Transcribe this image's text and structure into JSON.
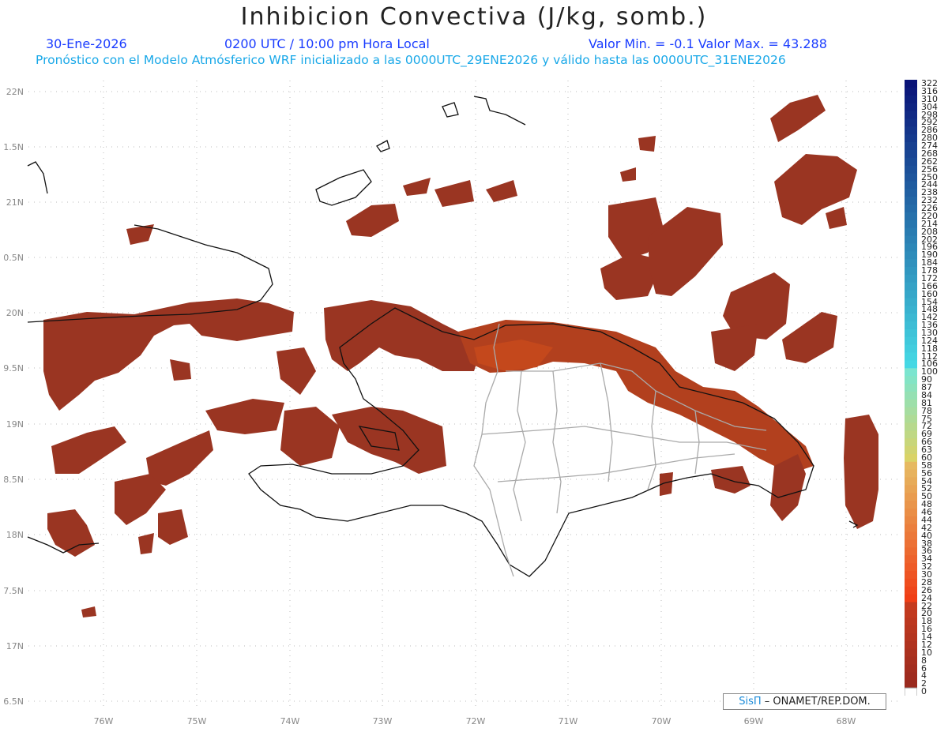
{
  "header": {
    "title": "Inhibicion Convectiva (J/kg, somb.)",
    "date": "30-Ene-2026",
    "time": "0200 UTC / 10:00 pm Hora Local",
    "minmax": "Valor Min. = -0.1  Valor Max. = 43.288",
    "subtitle": "Pronóstico con el Modelo Atmósferico WRF inicializado a las 0000UTC_29ENE2026 y válido hasta las  0000UTC_31ENE2026"
  },
  "axes": {
    "lat_labels": [
      "22N",
      "1.5N",
      "21N",
      "0.5N",
      "20N",
      "9.5N",
      "19N",
      "8.5N",
      "18N",
      "7.5N",
      "17N",
      "6.5N"
    ],
    "lon_labels": [
      "76W",
      "75W",
      "74W",
      "73W",
      "72W",
      "71W",
      "70W",
      "69W",
      "68W"
    ]
  },
  "credit": {
    "sis": "SisΠ",
    "text": "– ONAMET/REP.DOM."
  },
  "colorbar": {
    "labels": [
      "322",
      "316",
      "310",
      "304",
      "298",
      "292",
      "286",
      "280",
      "274",
      "268",
      "262",
      "256",
      "250",
      "244",
      "238",
      "232",
      "226",
      "220",
      "214",
      "208",
      "202",
      "196",
      "190",
      "184",
      "178",
      "172",
      "166",
      "160",
      "154",
      "148",
      "142",
      "136",
      "130",
      "124",
      "118",
      "112",
      "106",
      "100",
      "90",
      "87",
      "84",
      "81",
      "78",
      "75",
      "72",
      "69",
      "66",
      "63",
      "60",
      "58",
      "56",
      "54",
      "52",
      "50",
      "48",
      "46",
      "44",
      "42",
      "40",
      "38",
      "36",
      "34",
      "32",
      "30",
      "28",
      "26",
      "24",
      "22",
      "20",
      "18",
      "16",
      "14",
      "12",
      "10",
      "8",
      "6",
      "4",
      "2",
      "0"
    ]
  },
  "colors": {
    "shade_main": "#9a3522",
    "shade_hot": "#c4481c",
    "coast": "#111111",
    "border": "#aaaaaa",
    "title": "#222222",
    "info_blue": "#1a3cff",
    "info_cyan": "#19a8e8"
  }
}
